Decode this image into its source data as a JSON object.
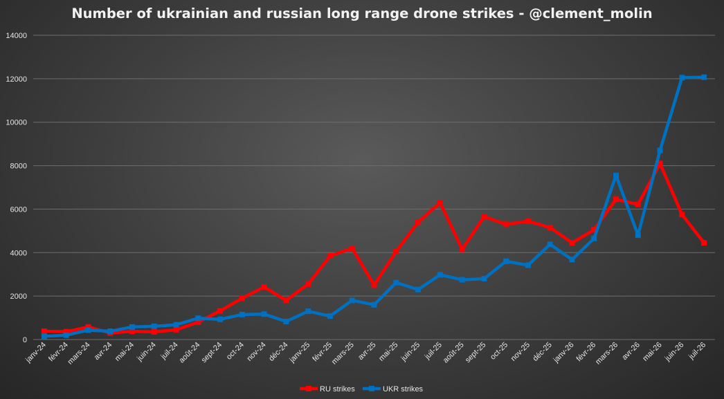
{
  "chart_data": {
    "type": "line",
    "title": "Number of ukrainian and russian long range drone strikes - @clement_molin",
    "xlabel": "",
    "ylabel": "",
    "ylim": [
      0,
      14000
    ],
    "yticks": [
      0,
      2000,
      4000,
      6000,
      8000,
      10000,
      12000,
      14000
    ],
    "grid": true,
    "legend_position": "bottom",
    "categories": [
      "janv-24",
      "févr-24",
      "mars-24",
      "avr-24",
      "mai-24",
      "juin-24",
      "juil-24",
      "août-24",
      "sept-24",
      "oct-24",
      "nov-24",
      "déc-24",
      "janv-25",
      "févr-25",
      "mars-25",
      "avr-25",
      "mai-25",
      "juin-25",
      "juil-25",
      "août-25",
      "sept-25",
      "oct-25",
      "nov-25",
      "déc-25",
      "janv-26",
      "févr-26",
      "mars-26",
      "avr-26",
      "mai-26",
      "juin-26",
      "juil-26"
    ],
    "series": [
      {
        "name": "RU strikes",
        "color": "#ff0000",
        "values": [
          380,
          360,
          580,
          300,
          380,
          350,
          450,
          800,
          1320,
          1900,
          2420,
          1800,
          2550,
          3850,
          4200,
          2500,
          4050,
          5400,
          6300,
          4150,
          5650,
          5300,
          5450,
          5150,
          4450,
          5050,
          6450,
          6220,
          8100,
          5750,
          4450
        ]
      },
      {
        "name": "UKR strikes",
        "color": "#0070c0",
        "values": [
          150,
          200,
          430,
          380,
          580,
          610,
          680,
          980,
          930,
          1150,
          1170,
          830,
          1300,
          1080,
          1800,
          1600,
          2620,
          2300,
          2980,
          2750,
          2800,
          3600,
          3420,
          4380,
          3680,
          4650,
          7550,
          4800,
          8700,
          12050,
          12070
        ]
      }
    ]
  }
}
